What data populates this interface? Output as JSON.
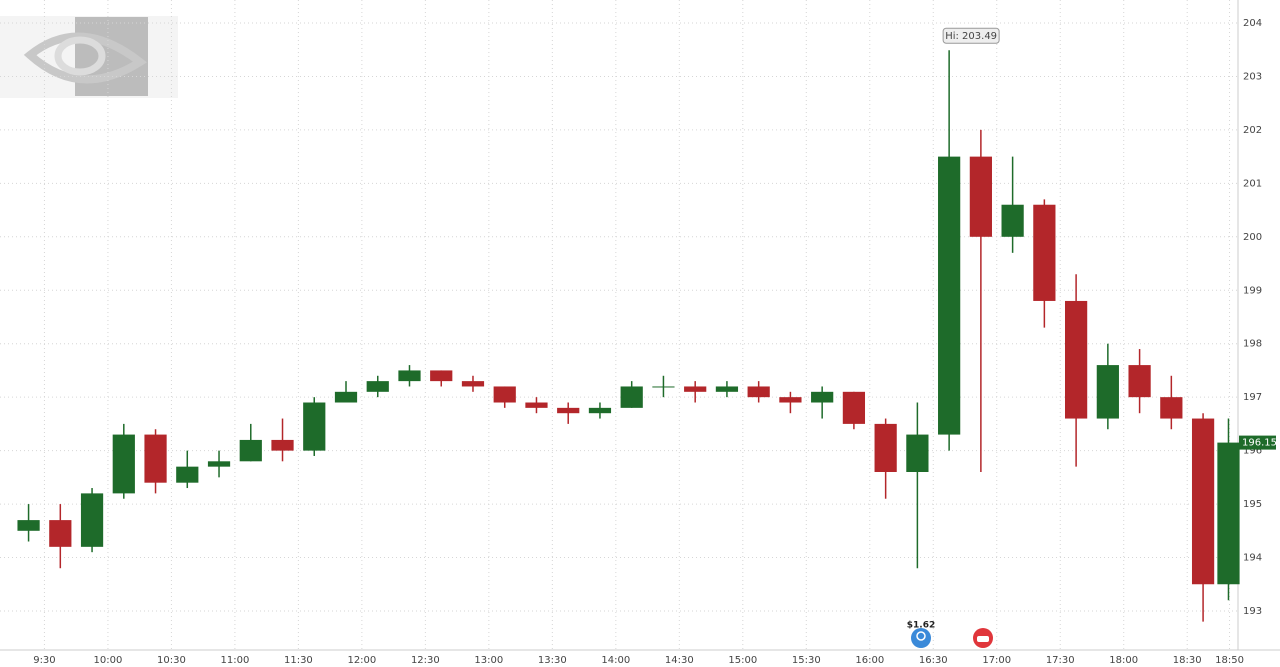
{
  "chart_data": {
    "type": "candlestick",
    "x": [
      "9:15",
      "9:30",
      "9:45",
      "10:00",
      "10:15",
      "10:30",
      "10:45",
      "11:00",
      "11:15",
      "11:30",
      "11:45",
      "12:00",
      "12:15",
      "12:30",
      "12:45",
      "13:00",
      "13:15",
      "13:30",
      "13:45",
      "14:00",
      "14:15",
      "14:30",
      "14:45",
      "15:00",
      "15:15",
      "15:30",
      "15:45",
      "16:00",
      "16:15",
      "16:30",
      "16:45",
      "17:00",
      "17:15",
      "17:30",
      "17:45",
      "18:00",
      "18:15",
      "18:30",
      "18:45"
    ],
    "open": [
      194.5,
      194.7,
      194.2,
      195.2,
      196.3,
      195.4,
      195.7,
      195.8,
      196.2,
      196.0,
      196.9,
      197.1,
      197.3,
      197.5,
      197.3,
      197.2,
      196.9,
      196.8,
      196.7,
      196.8,
      197.2,
      197.2,
      197.1,
      197.2,
      197.0,
      196.9,
      197.1,
      196.5,
      195.6,
      196.3,
      201.5,
      200.0,
      200.6,
      198.8,
      196.6,
      197.6,
      197.0,
      196.6,
      193.5
    ],
    "high": [
      195.0,
      195.0,
      195.3,
      196.5,
      196.4,
      196.0,
      196.0,
      196.5,
      196.6,
      197.0,
      197.3,
      197.4,
      197.6,
      197.5,
      197.4,
      197.2,
      197.0,
      196.9,
      196.9,
      197.3,
      197.4,
      197.3,
      197.3,
      197.3,
      197.1,
      197.2,
      197.1,
      196.6,
      196.9,
      203.49,
      202.0,
      201.5,
      200.7,
      199.3,
      198.0,
      197.9,
      197.4,
      196.7,
      196.6
    ],
    "low": [
      194.3,
      193.8,
      194.1,
      195.1,
      195.2,
      195.3,
      195.5,
      195.8,
      195.8,
      195.9,
      196.9,
      197.0,
      197.2,
      197.2,
      197.1,
      196.8,
      196.7,
      196.5,
      196.6,
      196.8,
      197.0,
      196.9,
      197.0,
      196.9,
      196.7,
      196.6,
      196.4,
      195.1,
      193.8,
      196.0,
      195.6,
      199.7,
      198.3,
      195.7,
      196.4,
      196.7,
      196.4,
      192.8,
      193.2
    ],
    "close": [
      194.7,
      194.2,
      195.2,
      196.3,
      195.4,
      195.7,
      195.8,
      196.2,
      196.0,
      196.9,
      197.1,
      197.3,
      197.5,
      197.3,
      197.2,
      196.9,
      196.8,
      196.7,
      196.8,
      197.2,
      197.2,
      197.1,
      197.2,
      197.0,
      196.9,
      197.1,
      196.5,
      195.6,
      196.3,
      201.5,
      200.0,
      200.6,
      198.8,
      196.6,
      197.6,
      197.0,
      196.6,
      193.5,
      196.15
    ],
    "up_color": "#1e6b2a",
    "down_color": "#b3262a",
    "xlim": [
      "9:09",
      "18:54"
    ],
    "xticks": [
      "9:30",
      "10:00",
      "10:30",
      "11:00",
      "11:30",
      "12:00",
      "12:30",
      "13:00",
      "13:30",
      "14:00",
      "14:30",
      "15:00",
      "15:30",
      "16:00",
      "16:30",
      "17:00",
      "17:30",
      "18:00",
      "18:30",
      "18:50"
    ],
    "ylim": [
      192.27,
      204.43
    ],
    "yticks": [
      193,
      194,
      195,
      196,
      197,
      198,
      199,
      200,
      201,
      202,
      203,
      204
    ],
    "grid": true,
    "annotations": [
      "Hi: 203.49",
      "$1.62"
    ]
  }
}
